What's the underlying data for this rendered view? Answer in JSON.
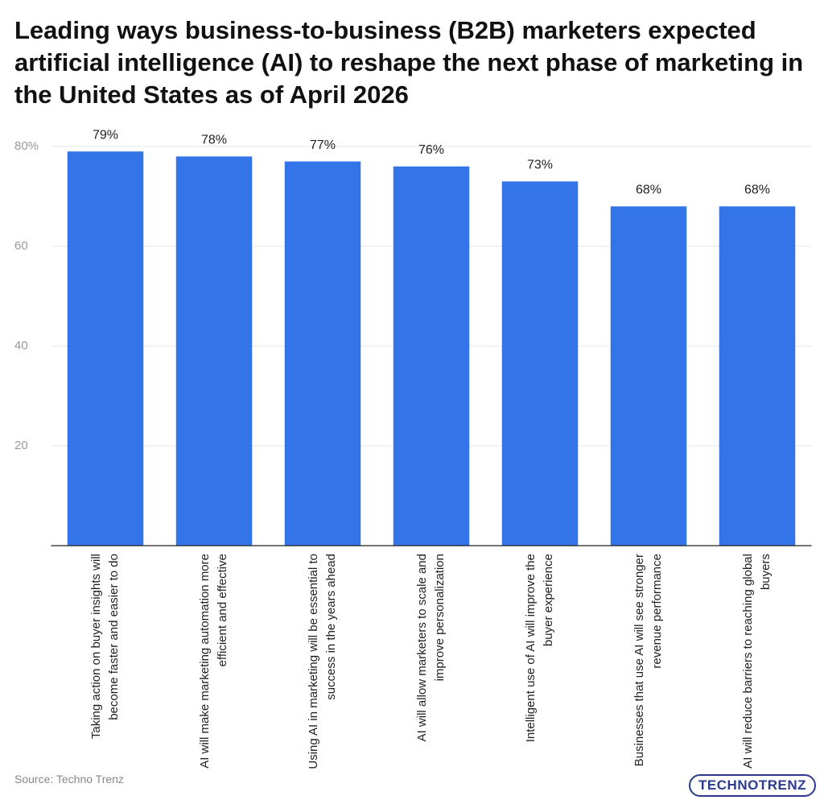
{
  "chart_data": {
    "type": "bar",
    "title": "Leading ways business-to-business (B2B) marketers expected artificial intelligence (AI) to reshape the next phase of marketing in the United States as of April 2026",
    "categories": [
      "Taking action on buyer insights will become faster and easier to do",
      "AI will make marketing automation more efficient and effective",
      "Using AI in marketing will be essential to success in the years ahead",
      "AI will allow marketers to scale and improve personalization",
      "Intelligent use of AI will improve the buyer experience",
      "Businesses that use AI will see stronger revenue performance",
      "AI will reduce barriers to reaching global buyers"
    ],
    "values": [
      79,
      78,
      77,
      76,
      73,
      68,
      68
    ],
    "value_labels": [
      "79%",
      "78%",
      "77%",
      "76%",
      "73%",
      "68%",
      "68%"
    ],
    "color": "#3374e8",
    "ylim": [
      0,
      80
    ],
    "yticks": [
      20,
      40,
      60,
      {
        "value": 80,
        "label": "80%"
      }
    ],
    "grid": true,
    "source": "Source: Techno Trenz",
    "logo": "TECHNOTRENZ"
  }
}
